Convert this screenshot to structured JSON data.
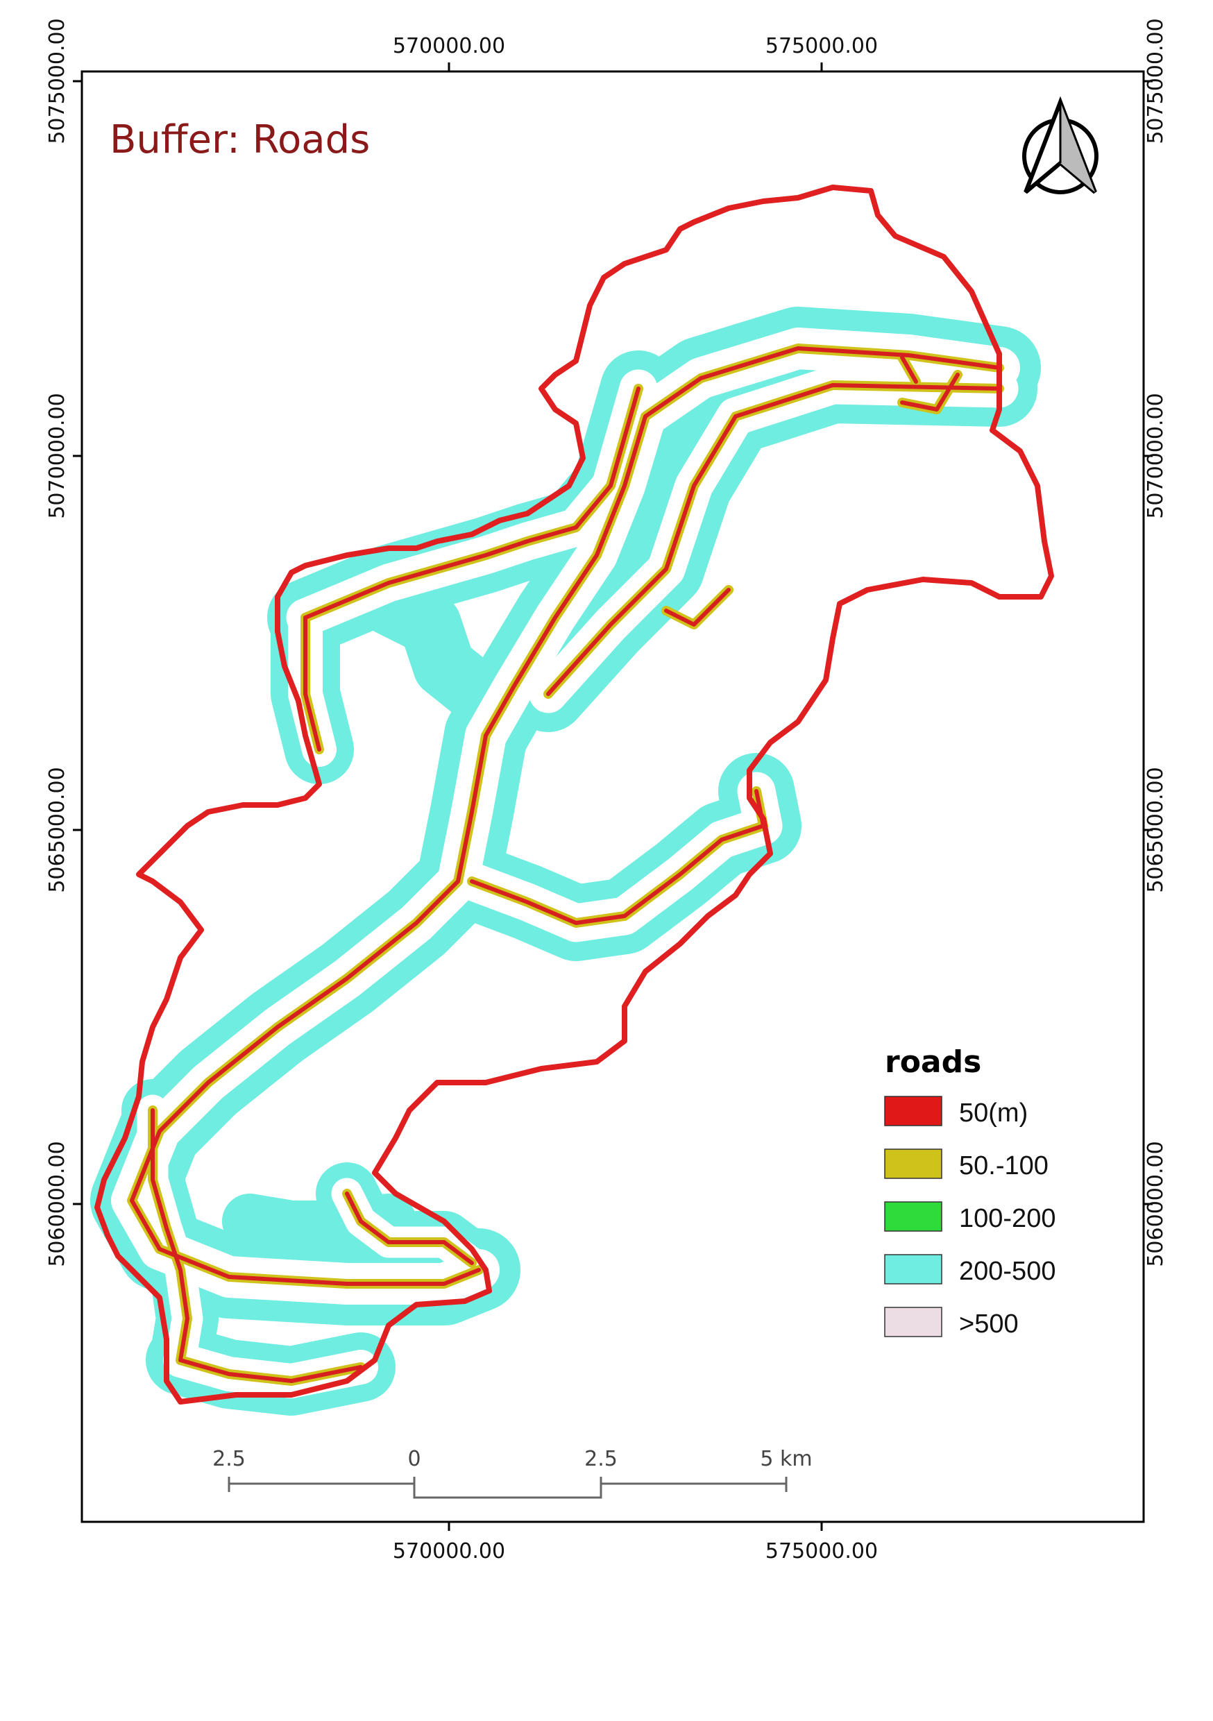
{
  "map": {
    "title": "Buffer: Roads",
    "grid_labels": {
      "x_top": [
        "570000.00",
        "575000.00"
      ],
      "x_bottom": [
        "570000.00",
        "575000.00"
      ],
      "y_left": [
        "5075000.00",
        "5070000.00",
        "5065000.00",
        "5060000.00"
      ],
      "y_right": [
        "5075000.00",
        "5070000.00",
        "5065000.00",
        "5060000.00"
      ]
    },
    "north_arrow": "north-arrow-icon",
    "scale_bar": {
      "labels": [
        "2.5",
        "0",
        "2.5",
        "5 km"
      ]
    },
    "legend": {
      "title": "roads",
      "items": [
        {
          "label": "50(m)",
          "color": "#e01818"
        },
        {
          "label": "50.-100",
          "color": "#cfc21a"
        },
        {
          "label": "100-200",
          "color": "#2edb3a"
        },
        {
          "label": "200-500",
          "color": "#6eede0"
        },
        {
          "label": ">500",
          "color": "#ecdde4"
        }
      ]
    },
    "colors": {
      "boundary": "#e02020",
      "road_core": "#d62020",
      "road_yellow": "#cfc21a",
      "buffer_cyan": "#6eede0",
      "title": "#8a1a1a"
    }
  }
}
